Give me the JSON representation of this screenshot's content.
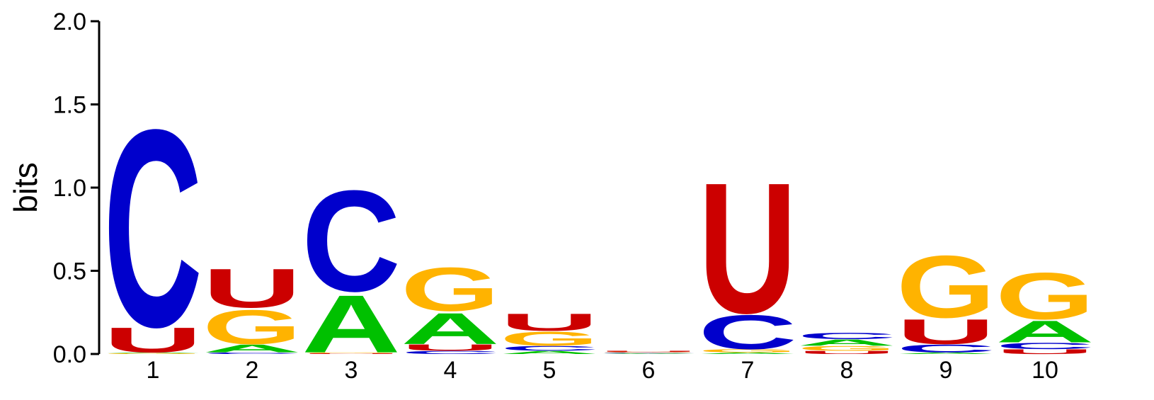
{
  "chart_data": {
    "type": "sequence-logo",
    "ylabel": "bits",
    "ylim": [
      0,
      2.0
    ],
    "yticks": [
      "0.0",
      "0.5",
      "1.0",
      "1.5",
      "2.0"
    ],
    "ytick_values": [
      0,
      0.5,
      1.0,
      1.5,
      2.0
    ],
    "positions": [
      "1",
      "2",
      "3",
      "4",
      "5",
      "6",
      "7",
      "8",
      "9",
      "10"
    ],
    "colors": {
      "A": "#00c000",
      "C": "#0000cc",
      "G": "#ffb300",
      "U": "#cc0000"
    },
    "stacks": [
      [
        {
          "letter": "G",
          "bits": 0.005
        },
        {
          "letter": "A",
          "bits": 0.005
        },
        {
          "letter": "U",
          "bits": 0.16
        },
        {
          "letter": "C",
          "bits": 1.27
        }
      ],
      [
        {
          "letter": "C",
          "bits": 0.01
        },
        {
          "letter": "A",
          "bits": 0.05
        },
        {
          "letter": "G",
          "bits": 0.22
        },
        {
          "letter": "U",
          "bits": 0.25
        }
      ],
      [
        {
          "letter": "U",
          "bits": 0.005
        },
        {
          "letter": "G",
          "bits": 0.005
        },
        {
          "letter": "A",
          "bits": 0.37
        },
        {
          "letter": "C",
          "bits": 0.65
        }
      ],
      [
        {
          "letter": "C",
          "bits": 0.02
        },
        {
          "letter": "U",
          "bits": 0.04
        },
        {
          "letter": "A",
          "bits": 0.2
        },
        {
          "letter": "G",
          "bits": 0.28
        }
      ],
      [
        {
          "letter": "A",
          "bits": 0.02
        },
        {
          "letter": "C",
          "bits": 0.03
        },
        {
          "letter": "G",
          "bits": 0.09
        },
        {
          "letter": "U",
          "bits": 0.11
        }
      ],
      [
        {
          "letter": "A",
          "bits": 0.004
        },
        {
          "letter": "C",
          "bits": 0.004
        },
        {
          "letter": "G",
          "bits": 0.004
        },
        {
          "letter": "U",
          "bits": 0.008
        }
      ],
      [
        {
          "letter": "A",
          "bits": 0.01
        },
        {
          "letter": "G",
          "bits": 0.02
        },
        {
          "letter": "C",
          "bits": 0.22
        },
        {
          "letter": "U",
          "bits": 0.84
        }
      ],
      [
        {
          "letter": "U",
          "bits": 0.02
        },
        {
          "letter": "G",
          "bits": 0.03
        },
        {
          "letter": "A",
          "bits": 0.04
        },
        {
          "letter": "C",
          "bits": 0.04
        }
      ],
      [
        {
          "letter": "A",
          "bits": 0.01
        },
        {
          "letter": "C",
          "bits": 0.05
        },
        {
          "letter": "U",
          "bits": 0.16
        },
        {
          "letter": "G",
          "bits": 0.4
        }
      ],
      [
        {
          "letter": "U",
          "bits": 0.03
        },
        {
          "letter": "C",
          "bits": 0.04
        },
        {
          "letter": "A",
          "bits": 0.14
        },
        {
          "letter": "G",
          "bits": 0.3
        }
      ]
    ]
  }
}
